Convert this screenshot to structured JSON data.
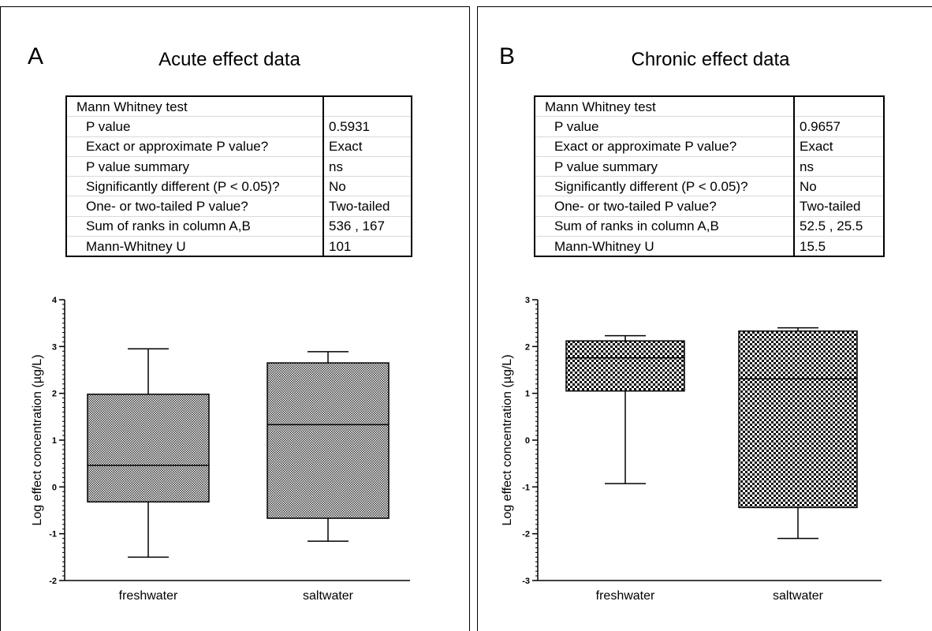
{
  "panels": [
    {
      "letter": "A",
      "title": "Acute effect data",
      "table": {
        "header": "Mann Whitney test",
        "rows": [
          {
            "label": "P value",
            "value": "0.5931"
          },
          {
            "label": "Exact or approximate P value?",
            "value": "Exact"
          },
          {
            "label": "P value summary",
            "value": "ns"
          },
          {
            "label": "Significantly different (P < 0.05)?",
            "value": "No"
          },
          {
            "label": "One- or two-tailed P value?",
            "value": "Two-tailed"
          },
          {
            "label": "Sum of  ranks in column A,B",
            "value": "536 , 167"
          },
          {
            "label": "Mann-Whitney U",
            "value": "101"
          }
        ]
      }
    },
    {
      "letter": "B",
      "title": "Chronic effect data",
      "table": {
        "header": "Mann Whitney test",
        "rows": [
          {
            "label": "P value",
            "value": "0.9657"
          },
          {
            "label": "Exact or approximate P value?",
            "value": "Exact"
          },
          {
            "label": "P value summary",
            "value": "ns"
          },
          {
            "label": "Significantly different (P < 0.05)?",
            "value": "No"
          },
          {
            "label": "One- or two-tailed P value?",
            "value": "Two-tailed"
          },
          {
            "label": "Sum of  ranks in column A,B",
            "value": "52.5 , 25.5"
          },
          {
            "label": "Mann-Whitney U",
            "value": "15.5"
          }
        ]
      }
    }
  ],
  "chart_data": [
    {
      "type": "box",
      "title": "",
      "xlabel": "",
      "ylabel": "Log effect concentration (µg/L)",
      "ylim": [
        -2,
        4
      ],
      "yticks": [
        "-2",
        "-1",
        "0",
        "1",
        "2",
        "3",
        "4"
      ],
      "categories": [
        "freshwater",
        "saltwater"
      ],
      "boxes": [
        {
          "min": -1.5,
          "q1": -0.32,
          "median": 0.46,
          "q3": 1.98,
          "max": 2.95
        },
        {
          "min": -1.16,
          "q1": -0.67,
          "median": 1.33,
          "q3": 2.65,
          "max": 2.89
        }
      ],
      "grid": false
    },
    {
      "type": "box",
      "title": "",
      "xlabel": "",
      "ylabel": "Log effect concentration (µg/L)",
      "ylim": [
        -3,
        3
      ],
      "yticks": [
        "-3",
        "-2",
        "-1",
        "0",
        "1",
        "2",
        "3"
      ],
      "categories": [
        "freshwater",
        "saltwater"
      ],
      "boxes": [
        {
          "min": -0.93,
          "q1": 1.05,
          "median": 1.76,
          "q3": 2.12,
          "max": 2.23
        },
        {
          "min": -2.1,
          "q1": -1.44,
          "median": 1.31,
          "q3": 2.33,
          "max": 2.4
        }
      ],
      "grid": false
    }
  ]
}
